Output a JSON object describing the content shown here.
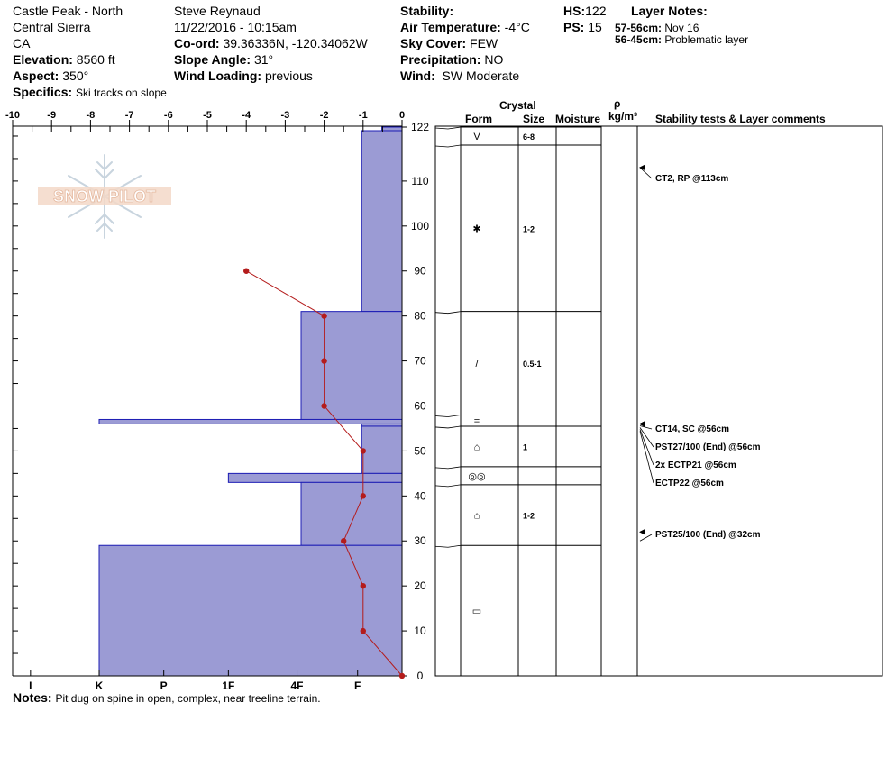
{
  "header": {
    "location": "Castle Peak - North",
    "region": "Central Sierra",
    "state": "CA",
    "elevation_label": "Elevation:",
    "elevation_value": "8560 ft",
    "aspect_label": "Aspect:",
    "aspect_value": "350°",
    "specifics_label": "Specifics:",
    "specifics_value": "Ski tracks on slope",
    "observer": "Steve Reynaud",
    "datetime": "11/22/2016 - 10:15am",
    "coord_label": "Co-ord:",
    "coord_value": "39.36336N, -120.34062W",
    "slope_label": "Slope Angle:",
    "slope_value": "31°",
    "wind_loading_label": "Wind Loading:",
    "wind_loading_value": "previous",
    "stability_label": "Stability:",
    "air_temp_label": "Air Temperature:",
    "air_temp_value": "-4°C",
    "sky_label": "Sky Cover:",
    "sky_value": "FEW",
    "precip_label": "Precipitation:",
    "precip_value": "NO",
    "wind_label": "Wind:",
    "wind_value": "SW Moderate",
    "hs_label": "HS:",
    "hs_value": "122",
    "ps_label": "PS:",
    "ps_value": "15",
    "layer_notes_label": "Layer Notes:",
    "layer_notes": [
      {
        "range": "57-56cm:",
        "note": "Nov 16"
      },
      {
        "range": "56-45cm:",
        "note": "Problematic layer"
      }
    ],
    "notes_label": "Notes:",
    "notes_value": "Pit dug on spine in open, complex, near treeline terrain."
  },
  "logo_text": "SNOW PILOT",
  "columns": {
    "crystal": "Crystal",
    "form": "Form",
    "size": "Size",
    "moisture": "Moisture",
    "rho": "ρ",
    "density_unit": "kg/m³",
    "stability": "Stability tests & Layer comments"
  },
  "colors": {
    "hardness_fill": "#9b9bd4",
    "hardness_stroke": "#1c1cb4",
    "temp_line": "#b41c1c"
  },
  "chart_data": {
    "type": "area",
    "temperature_axis": {
      "ticks": [
        "-10",
        "-9",
        "-8",
        "-7",
        "-6",
        "-5",
        "-4",
        "-3",
        "-2",
        "-1",
        "0"
      ],
      "range": [
        -10,
        0
      ]
    },
    "height_axis": {
      "ticks": [
        "0",
        "10",
        "20",
        "30",
        "40",
        "50",
        "60",
        "70",
        "80",
        "90",
        "100",
        "110",
        "122"
      ],
      "range": [
        0,
        122
      ]
    },
    "hardness_axis": {
      "ticks": [
        "I",
        "K",
        "P",
        "1F",
        "4F",
        "F"
      ]
    },
    "hardness_profile": [
      {
        "top": 122,
        "bottom": 121.2,
        "hardness_index": 0.5
      },
      {
        "top": 121.2,
        "bottom": 81,
        "hardness_index": 1
      },
      {
        "top": 81,
        "bottom": 57,
        "hardness_index": 2.5
      },
      {
        "top": 57,
        "bottom": 56,
        "hardness_index": 7.5
      },
      {
        "top": 56,
        "bottom": 55.5,
        "hardness_index": 1
      },
      {
        "top": 55.5,
        "bottom": 45,
        "hardness_index": 1
      },
      {
        "top": 45,
        "bottom": 43,
        "hardness_index": 4.3
      },
      {
        "top": 43,
        "bottom": 29,
        "hardness_index": 2.5
      },
      {
        "top": 29,
        "bottom": 0,
        "hardness_index": 7.5
      }
    ],
    "temperature_profile": [
      {
        "height": 90,
        "temp": -4
      },
      {
        "height": 80,
        "temp": -2
      },
      {
        "height": 70,
        "temp": -2
      },
      {
        "height": 60,
        "temp": -2
      },
      {
        "height": 50,
        "temp": -1
      },
      {
        "height": 40,
        "temp": -1
      },
      {
        "height": 30,
        "temp": -1.5
      },
      {
        "height": 20,
        "temp": -1
      },
      {
        "height": 10,
        "temp": -1
      },
      {
        "height": 0,
        "temp": 0
      }
    ],
    "layers": [
      {
        "top": 122,
        "bottom": 118,
        "form": "V",
        "size": "6-8"
      },
      {
        "top": 118,
        "bottom": 81,
        "form": "✱",
        "size": "1-2"
      },
      {
        "top": 81,
        "bottom": 58,
        "form": "/",
        "size": "0.5-1"
      },
      {
        "top": 58,
        "bottom": 55.5,
        "form": "=",
        "size": ""
      },
      {
        "top": 55.5,
        "bottom": 46.5,
        "form": "⌂",
        "size": "1"
      },
      {
        "top": 46.5,
        "bottom": 42.5,
        "form": "◎◎",
        "size": ""
      },
      {
        "top": 42.5,
        "bottom": 29,
        "form": "⌂",
        "size": "1-2"
      },
      {
        "top": 29,
        "bottom": 0,
        "form": "▭",
        "size": ""
      }
    ],
    "stability_tests": [
      {
        "text": "CT2, RP @113cm",
        "height": 113
      },
      {
        "text": "CT14, SC @56cm",
        "height": 56
      },
      {
        "text": "PST27/100 (End) @56cm",
        "height": 56
      },
      {
        "text": "2x ECTP21 @56cm",
        "height": 56
      },
      {
        "text": "ECTP22 @56cm",
        "height": 56
      },
      {
        "text": "PST25/100 (End) @32cm",
        "height": 32
      }
    ]
  }
}
